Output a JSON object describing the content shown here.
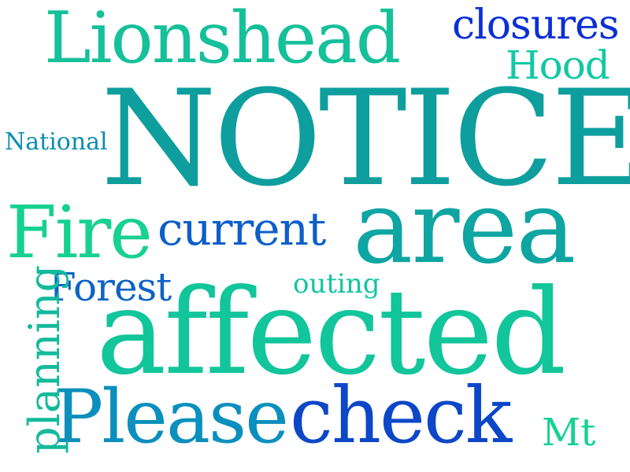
{
  "words": [
    {
      "text": "NOTICE",
      "color": "#0e9e9e"
    },
    {
      "text": "affected",
      "color": "#12c59a"
    },
    {
      "text": "area",
      "color": "#0ea5a3"
    },
    {
      "text": "Lionshead",
      "color": "#15c09a"
    },
    {
      "text": "Please",
      "color": "#0b8fbd"
    },
    {
      "text": "check",
      "color": "#0d47c8"
    },
    {
      "text": "Fire",
      "color": "#16d18f"
    },
    {
      "text": "current",
      "color": "#0d5fc9"
    },
    {
      "text": "closures",
      "color": "#0b2fd6"
    },
    {
      "text": "Hood",
      "color": "#13c8a4"
    },
    {
      "text": "Forest",
      "color": "#0c63c6"
    },
    {
      "text": "National",
      "color": "#0a8eb0"
    },
    {
      "text": "outing",
      "color": "#12c4a3"
    },
    {
      "text": "planning",
      "color": "#14ba9c"
    },
    {
      "text": "Mt",
      "color": "#16d290"
    }
  ]
}
